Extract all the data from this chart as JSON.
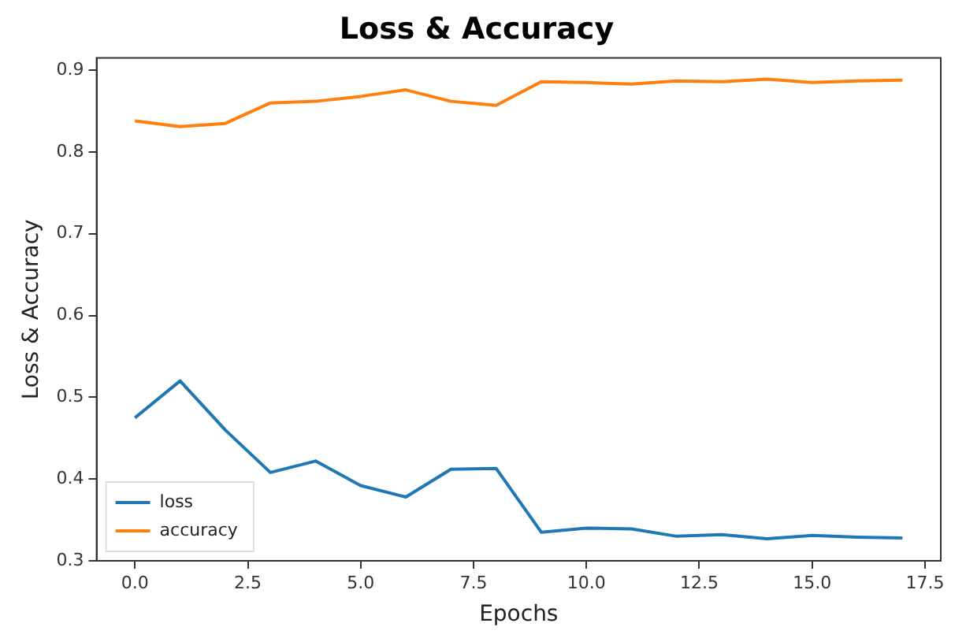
{
  "chart_data": {
    "type": "line",
    "title": "Loss & Accuracy",
    "xlabel": "Epochs",
    "ylabel": "Loss & Accuracy",
    "x": [
      0,
      1,
      2,
      3,
      4,
      5,
      6,
      7,
      8,
      9,
      10,
      11,
      12,
      13,
      14,
      15,
      16,
      17
    ],
    "series": [
      {
        "name": "loss",
        "color": "#1f77b4",
        "values": [
          0.475,
          0.52,
          0.46,
          0.408,
          0.422,
          0.392,
          0.378,
          0.412,
          0.413,
          0.335,
          0.34,
          0.339,
          0.33,
          0.332,
          0.327,
          0.331,
          0.329,
          0.328
        ]
      },
      {
        "name": "accuracy",
        "color": "#ff7f0e",
        "values": [
          0.838,
          0.831,
          0.835,
          0.86,
          0.862,
          0.868,
          0.876,
          0.862,
          0.857,
          0.886,
          0.885,
          0.883,
          0.887,
          0.886,
          0.889,
          0.885,
          0.887,
          0.888
        ]
      }
    ],
    "xlim": [
      -0.85,
      17.85
    ],
    "xticks": [
      {
        "value": 0,
        "label": "0.0"
      },
      {
        "value": 2.5,
        "label": "2.5"
      },
      {
        "value": 5,
        "label": "5.0"
      },
      {
        "value": 7.5,
        "label": "7.5"
      },
      {
        "value": 10,
        "label": "10.0"
      },
      {
        "value": 12.5,
        "label": "12.5"
      },
      {
        "value": 15,
        "label": "15.0"
      },
      {
        "value": 17.5,
        "label": "17.5"
      }
    ],
    "ylim": [
      0.3,
      0.915
    ],
    "yticks": [
      0.3,
      0.4,
      0.5,
      0.6,
      0.7,
      0.8,
      0.9
    ],
    "legend": "bottom left",
    "grid": false
  }
}
